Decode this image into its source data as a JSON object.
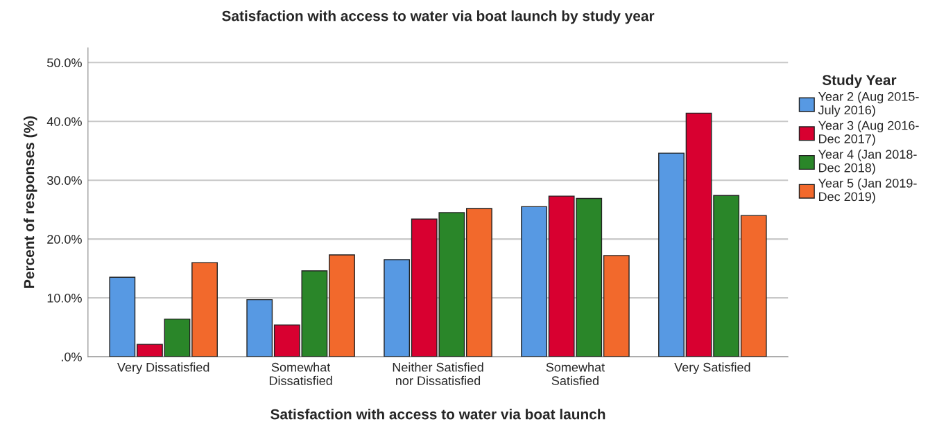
{
  "chart_data": {
    "type": "bar",
    "title": "Satisfaction with access to water via boat launch by study year",
    "xlabel": "Satisfaction with access to water via boat launch",
    "ylabel": "Percent of responses (%)",
    "legend_title": "Study Year",
    "categories": [
      "Very Dissatisfied",
      "Somewhat\nDissatisfied",
      "Neither Satisfied\nnor Dissatisfied",
      "Somewhat\nSatisfied",
      "Very Satisfied"
    ],
    "series": [
      {
        "name": "Year 2 (Aug 2015-\nJuly 2016)",
        "color": "#5799e3",
        "values": [
          13.5,
          9.7,
          16.5,
          25.5,
          34.6
        ]
      },
      {
        "name": "Year 3 (Aug 2016-\nDec 2017)",
        "color": "#d80030",
        "values": [
          2.1,
          5.4,
          23.4,
          27.3,
          41.4
        ]
      },
      {
        "name": "Year 4 (Jan 2018-\nDec 2018)",
        "color": "#2a8629",
        "values": [
          6.4,
          14.6,
          24.5,
          26.9,
          27.4
        ]
      },
      {
        "name": "Year 5 (Jan 2019-\nDec 2019)",
        "color": "#f2692c",
        "values": [
          16.0,
          17.3,
          25.2,
          17.2,
          24.0
        ]
      }
    ],
    "ylim": [
      0,
      52.5
    ],
    "yticks": [
      {
        "value": 0,
        "label": ".0%"
      },
      {
        "value": 10,
        "label": "10.0%"
      },
      {
        "value": 20,
        "label": "20.0%"
      },
      {
        "value": 30,
        "label": "30.0%"
      },
      {
        "value": 40,
        "label": "40.0%"
      },
      {
        "value": 50,
        "label": "50.0%"
      }
    ],
    "grid": "y",
    "legend": "right"
  }
}
